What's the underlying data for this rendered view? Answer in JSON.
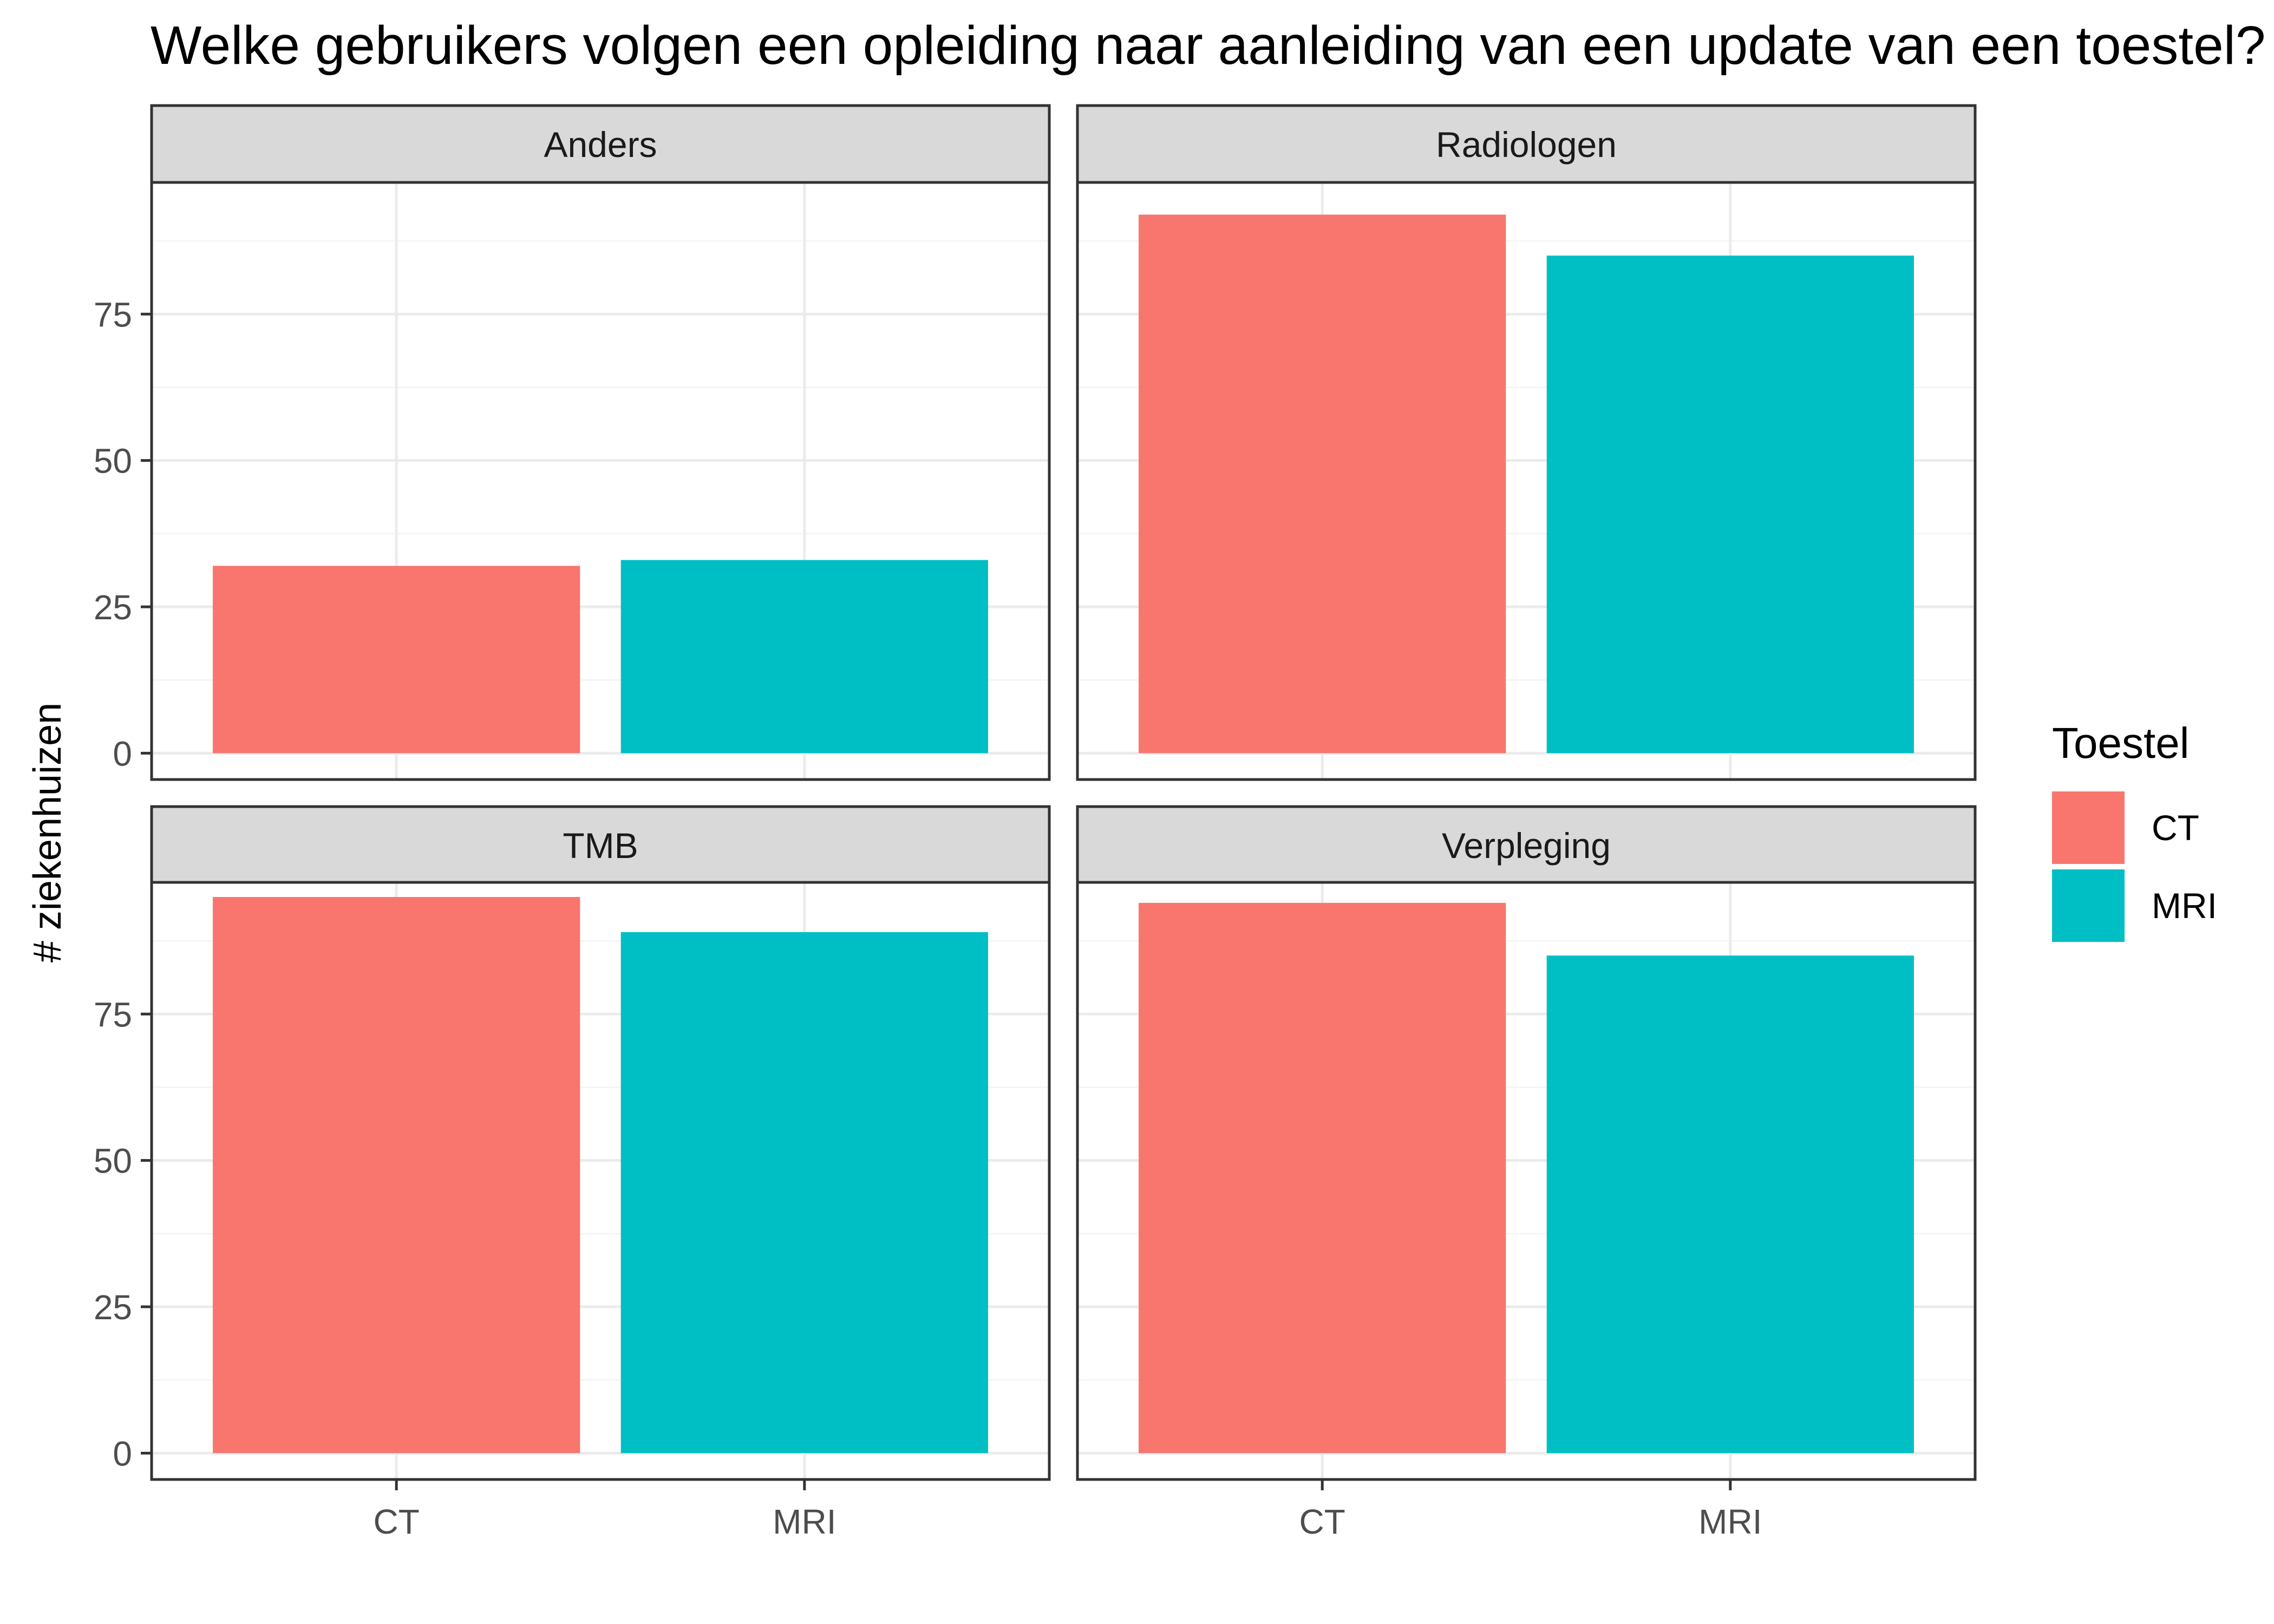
{
  "chart_data": {
    "type": "bar",
    "title": "Welke gebruikers volgen een opleiding naar aanleiding van een update van een toestel?",
    "xlabel": "",
    "ylabel": "# ziekenhuizen",
    "categories": [
      "CT",
      "MRI"
    ],
    "ylim": [
      -4.5,
      97.5
    ],
    "yticks": [
      0,
      25,
      50,
      75
    ],
    "grid": true,
    "legend": {
      "title": "Toestel",
      "position": "right",
      "entries": [
        {
          "label": "CT",
          "color": "#F8766D"
        },
        {
          "label": "MRI",
          "color": "#00BFC4"
        }
      ]
    },
    "facets": [
      {
        "name": "Anders",
        "values": {
          "CT": 32,
          "MRI": 33
        }
      },
      {
        "name": "Radiologen",
        "values": {
          "CT": 92,
          "MRI": 85
        }
      },
      {
        "name": "TMB",
        "values": {
          "CT": 95,
          "MRI": 89
        }
      },
      {
        "name": "Verpleging",
        "values": {
          "CT": 94,
          "MRI": 85
        }
      }
    ]
  },
  "colors": {
    "panel_border": "#333333",
    "strip_fill": "#D9D9D9",
    "grid_major": "#EBEBEB",
    "grid_minor": "#F5F5F5",
    "axis_text": "#4D4D4D"
  }
}
